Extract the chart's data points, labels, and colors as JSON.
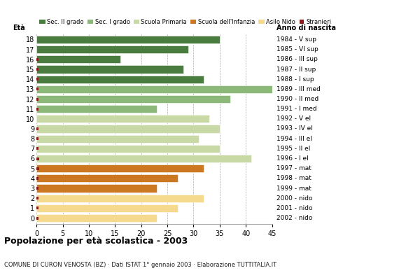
{
  "ages": [
    18,
    17,
    16,
    15,
    14,
    13,
    12,
    11,
    10,
    9,
    8,
    7,
    6,
    5,
    4,
    3,
    2,
    1,
    0
  ],
  "anno_nascita": [
    "1984 - V sup",
    "1985 - VI sup",
    "1986 - III sup",
    "1987 - II sup",
    "1988 - I sup",
    "1989 - III med",
    "1990 - II med",
    "1991 - I med",
    "1992 - V el",
    "1993 - IV el",
    "1994 - III el",
    "1995 - II el",
    "1996 - I el",
    "1997 - mat",
    "1998 - mat",
    "1999 - mat",
    "2000 - nido",
    "2001 - nido",
    "2002 - nido"
  ],
  "bar_values": [
    35,
    29,
    16,
    28,
    32,
    45,
    37,
    23,
    33,
    35,
    31,
    35,
    41,
    32,
    27,
    23,
    32,
    27,
    23
  ],
  "stranieri_x": [
    0,
    0,
    1,
    1,
    1,
    1,
    1,
    1,
    0,
    1,
    1,
    1,
    2,
    2,
    1,
    1,
    1,
    1,
    1
  ],
  "bar_colors": [
    "#4a7c3f",
    "#4a7c3f",
    "#4a7c3f",
    "#4a7c3f",
    "#4a7c3f",
    "#8cb87a",
    "#8cb87a",
    "#8cb87a",
    "#c8d9a5",
    "#c8d9a5",
    "#c8d9a5",
    "#c8d9a5",
    "#c8d9a5",
    "#cc7722",
    "#cc7722",
    "#cc7722",
    "#f5d98c",
    "#f5d98c",
    "#f5d98c"
  ],
  "legend_labels": [
    "Sec. II grado",
    "Sec. I grado",
    "Scuola Primaria",
    "Scuola dell'Infanzia",
    "Asilo Nido",
    "Stranieri"
  ],
  "legend_colors": [
    "#4a7c3f",
    "#8cb87a",
    "#c8d9a5",
    "#cc7722",
    "#f5d98c",
    "#8b1a1a"
  ],
  "title": "Popolazione per età scolastica - 2003",
  "subtitle": "COMUNE DI CURON VENOSTA (BZ) · Dati ISTAT 1° gennaio 2003 · Elaborazione TUTTITALIA.IT",
  "xlabel_eta": "Età",
  "xlabel_anno": "Anno di nascita",
  "xlim": [
    0,
    45
  ],
  "xticks": [
    0,
    5,
    10,
    15,
    20,
    25,
    30,
    35,
    40,
    45
  ],
  "stranieri_color": "#8b1a1a",
  "bg_color": "#ffffff",
  "grid_color": "#aaaaaa",
  "bar_height": 0.78
}
